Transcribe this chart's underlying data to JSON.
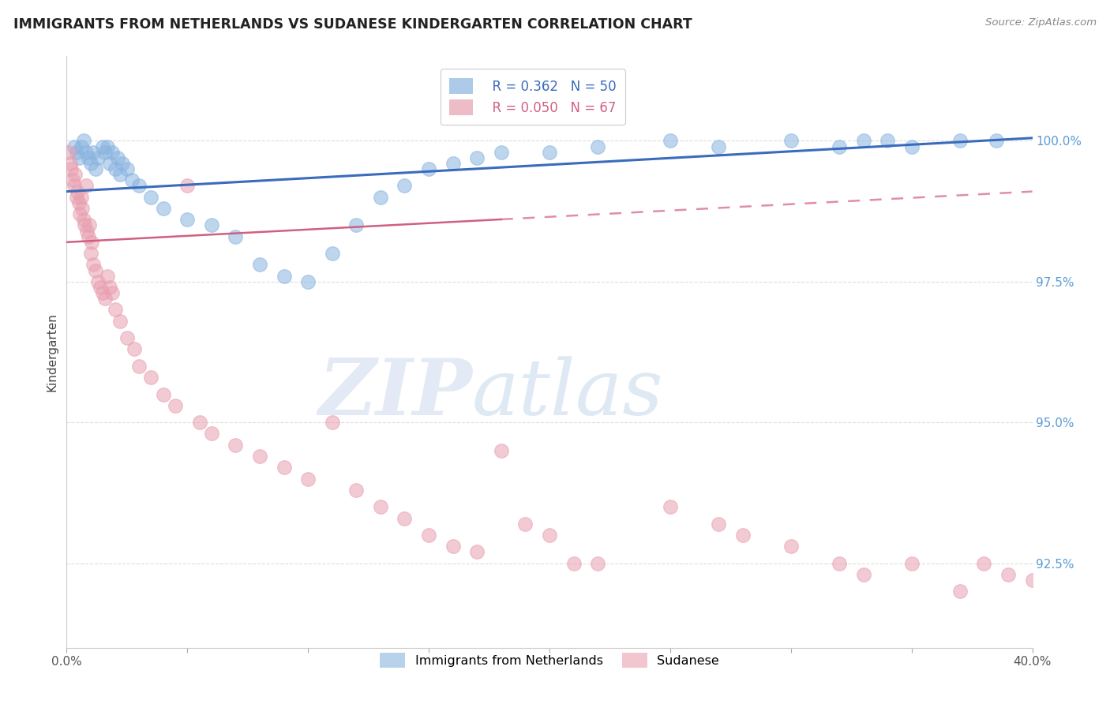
{
  "title": "IMMIGRANTS FROM NETHERLANDS VS SUDANESE KINDERGARTEN CORRELATION CHART",
  "source": "Source: ZipAtlas.com",
  "ylabel": "Kindergarten",
  "right_yticks": [
    100.0,
    97.5,
    95.0,
    92.5
  ],
  "right_ytick_labels": [
    "100.0%",
    "97.5%",
    "95.0%",
    "92.5%"
  ],
  "legend_blue_r": "R = 0.362",
  "legend_blue_n": "N = 50",
  "legend_pink_r": "R = 0.050",
  "legend_pink_n": "N = 67",
  "legend_blue_label": "Immigrants from Netherlands",
  "legend_pink_label": "Sudanese",
  "blue_color": "#8ab4e0",
  "pink_color": "#e8a0b0",
  "blue_line_color": "#3a6bbd",
  "pink_line_color": "#d06080",
  "watermark_zip": "ZIP",
  "watermark_atlas": "atlas",
  "blue_x": [
    0.3,
    0.4,
    0.5,
    0.6,
    0.7,
    0.8,
    0.9,
    1.0,
    1.1,
    1.2,
    1.3,
    1.5,
    1.6,
    1.7,
    1.8,
    1.9,
    2.0,
    2.1,
    2.2,
    2.3,
    2.5,
    2.7,
    3.0,
    3.5,
    4.0,
    5.0,
    6.0,
    7.0,
    8.0,
    9.0,
    10.0,
    11.0,
    12.0,
    13.0,
    14.0,
    15.0,
    16.0,
    17.0,
    18.0,
    20.0,
    22.0,
    25.0,
    27.0,
    30.0,
    32.0,
    33.0,
    34.0,
    35.0,
    37.0,
    38.5
  ],
  "blue_y": [
    99.9,
    99.8,
    99.7,
    99.9,
    100.0,
    99.8,
    99.7,
    99.6,
    99.8,
    99.5,
    99.7,
    99.9,
    99.8,
    99.9,
    99.6,
    99.8,
    99.5,
    99.7,
    99.4,
    99.6,
    99.5,
    99.3,
    99.2,
    99.0,
    98.8,
    98.6,
    98.5,
    98.3,
    97.8,
    97.6,
    97.5,
    98.0,
    98.5,
    99.0,
    99.2,
    99.5,
    99.6,
    99.7,
    99.8,
    99.8,
    99.9,
    100.0,
    99.9,
    100.0,
    99.9,
    100.0,
    100.0,
    99.9,
    100.0,
    100.0
  ],
  "pink_x": [
    0.1,
    0.15,
    0.2,
    0.25,
    0.3,
    0.35,
    0.4,
    0.45,
    0.5,
    0.55,
    0.6,
    0.65,
    0.7,
    0.75,
    0.8,
    0.85,
    0.9,
    0.95,
    1.0,
    1.05,
    1.1,
    1.2,
    1.3,
    1.4,
    1.5,
    1.6,
    1.7,
    1.8,
    1.9,
    2.0,
    2.2,
    2.5,
    2.8,
    3.0,
    3.5,
    4.0,
    4.5,
    5.0,
    5.5,
    6.0,
    7.0,
    8.0,
    9.0,
    10.0,
    11.0,
    12.0,
    13.0,
    14.0,
    15.0,
    16.0,
    17.0,
    18.0,
    19.0,
    20.0,
    21.0,
    22.0,
    25.0,
    27.0,
    28.0,
    30.0,
    32.0,
    33.0,
    35.0,
    37.0,
    38.0,
    39.0,
    40.0
  ],
  "pink_y": [
    99.8,
    99.6,
    99.5,
    99.3,
    99.2,
    99.4,
    99.0,
    99.1,
    98.9,
    98.7,
    99.0,
    98.8,
    98.6,
    98.5,
    99.2,
    98.4,
    98.3,
    98.5,
    98.0,
    98.2,
    97.8,
    97.7,
    97.5,
    97.4,
    97.3,
    97.2,
    97.6,
    97.4,
    97.3,
    97.0,
    96.8,
    96.5,
    96.3,
    96.0,
    95.8,
    95.5,
    95.3,
    99.2,
    95.0,
    94.8,
    94.6,
    94.4,
    94.2,
    94.0,
    95.0,
    93.8,
    93.5,
    93.3,
    93.0,
    92.8,
    92.7,
    94.5,
    93.2,
    93.0,
    92.5,
    92.5,
    93.5,
    93.2,
    93.0,
    92.8,
    92.5,
    92.3,
    92.5,
    92.0,
    92.5,
    92.3,
    92.2
  ],
  "ylim_min": 91.0,
  "ylim_max": 101.5,
  "xlim_min": 0.0,
  "xlim_max": 40.0,
  "blue_trend_x0": 0.0,
  "blue_trend_y0": 99.1,
  "blue_trend_x1": 40.0,
  "blue_trend_y1": 100.05,
  "pink_trend_x0": 0.0,
  "pink_trend_y0": 98.2,
  "pink_trend_x1": 40.0,
  "pink_trend_y1": 99.1,
  "pink_solid_end_x": 18.0,
  "grid_color": "#dddddd",
  "spine_color": "#cccccc"
}
